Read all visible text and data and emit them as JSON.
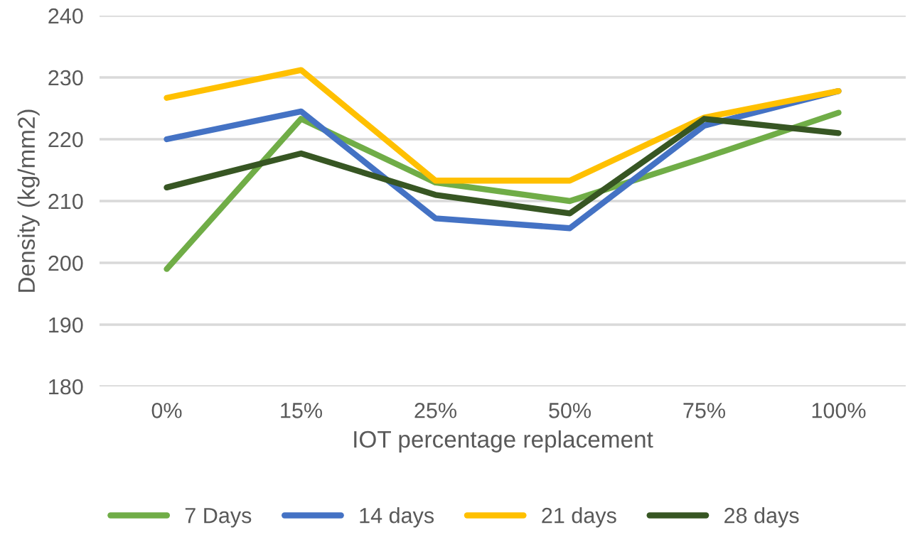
{
  "chart_data": {
    "type": "line",
    "xlabel": "IOT percentage replacement",
    "ylabel": "Density (kg/mm2)",
    "categories": [
      "0%",
      "15%",
      "25%",
      "50%",
      "75%",
      "100%"
    ],
    "series": [
      {
        "name": "7 Days",
        "color": "#70ad47",
        "values": [
          199,
          223.3,
          213,
          210,
          217,
          224.3
        ]
      },
      {
        "name": "14 days",
        "color": "#4472c4",
        "values": [
          220,
          224.5,
          207.2,
          205.6,
          222.2,
          227.8
        ]
      },
      {
        "name": "21 days",
        "color": "#ffc000",
        "values": [
          226.7,
          231.2,
          213.3,
          213.3,
          223.5,
          227.8
        ]
      },
      {
        "name": "28 days",
        "color": "#375623",
        "values": [
          212.2,
          217.7,
          211,
          208,
          223.3,
          221
        ]
      }
    ],
    "ylim": [
      180,
      240
    ],
    "yticks": [
      180,
      190,
      200,
      210,
      220,
      230,
      240
    ],
    "grid": "y",
    "legend": "bottom",
    "marker": "none",
    "line_style": "solid"
  }
}
